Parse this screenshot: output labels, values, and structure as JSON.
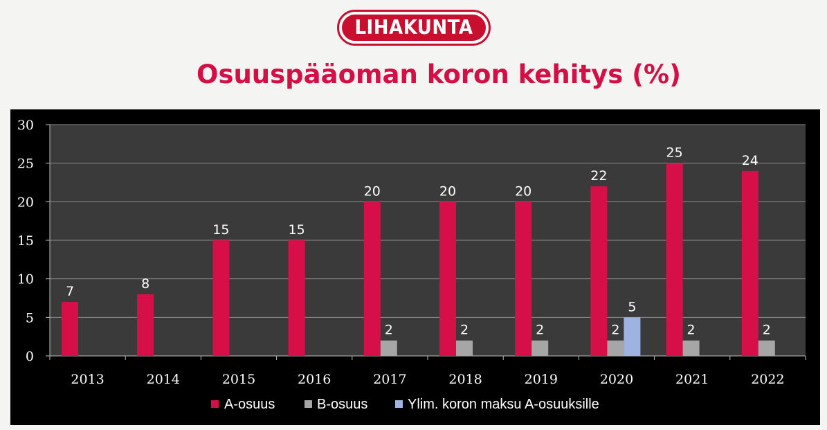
{
  "logo": {
    "text": "LIHAKUNTA"
  },
  "chart_data": {
    "type": "bar",
    "title": "Osuuspääoman koron kehitys (%)",
    "categories": [
      "2013",
      "2014",
      "2015",
      "2016",
      "2017",
      "2018",
      "2019",
      "2020",
      "2021",
      "2022"
    ],
    "series": [
      {
        "name": "A-osuus",
        "values": [
          7,
          8,
          15,
          15,
          20,
          20,
          20,
          22,
          25,
          24
        ],
        "color": "#d70f49"
      },
      {
        "name": "B-osuus",
        "values": [
          null,
          null,
          null,
          null,
          2,
          2,
          2,
          2,
          2,
          2
        ],
        "color": "#a6a6a6"
      },
      {
        "name": "Ylim. koron maksu A-osuuksille",
        "values": [
          null,
          null,
          null,
          null,
          null,
          null,
          null,
          5,
          null,
          null
        ],
        "color": "#9fb3e0"
      }
    ],
    "ylim": [
      0,
      30
    ],
    "yticks": [
      0,
      5,
      10,
      15,
      20,
      25,
      30
    ],
    "grid": true,
    "legend": "bottom",
    "plot_background": "#3a3a3a",
    "grid_color": "#8c8c8c"
  }
}
